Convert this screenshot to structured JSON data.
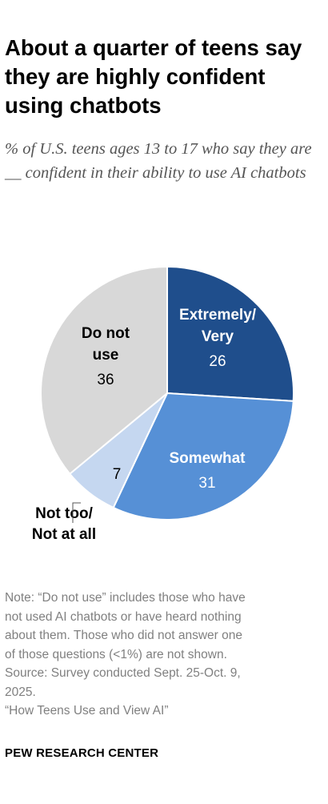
{
  "title": "About a quarter of teens say they are highly confident using chatbots",
  "subtitle": "% of U.S. teens ages 13 to 17 who say they are __ confident in their ability to use AI chatbots",
  "chart_data": {
    "type": "pie",
    "slices": [
      {
        "label_lines": [
          "Extremely/",
          "Very"
        ],
        "value": 26,
        "value_label": "26",
        "color": "#1f4e8c"
      },
      {
        "label_lines": [
          "Somewhat"
        ],
        "value": 31,
        "value_label": "31",
        "color": "#5690d6"
      },
      {
        "label_lines": [
          "Not too/",
          "Not at all"
        ],
        "value": 7,
        "value_label": "7",
        "color": "#c5d7f0"
      },
      {
        "label_lines": [
          "Do not",
          "use"
        ],
        "value": 36,
        "value_label": "36",
        "color": "#d8d8d8"
      }
    ],
    "start_angle_deg": 0,
    "direction": "clockwise"
  },
  "notes": {
    "note_lines": [
      "Note: “Do not use” includes those who have",
      "not used AI chatbots or have heard nothing",
      "about them. Those who did not answer one",
      "of those questions (<1%) are not shown."
    ],
    "source_lines": [
      "Source: Survey conducted Sept. 25-Oct. 9,",
      "2025."
    ],
    "report": "“How Teens Use and View AI”"
  },
  "brand": "PEW RESEARCH CENTER"
}
